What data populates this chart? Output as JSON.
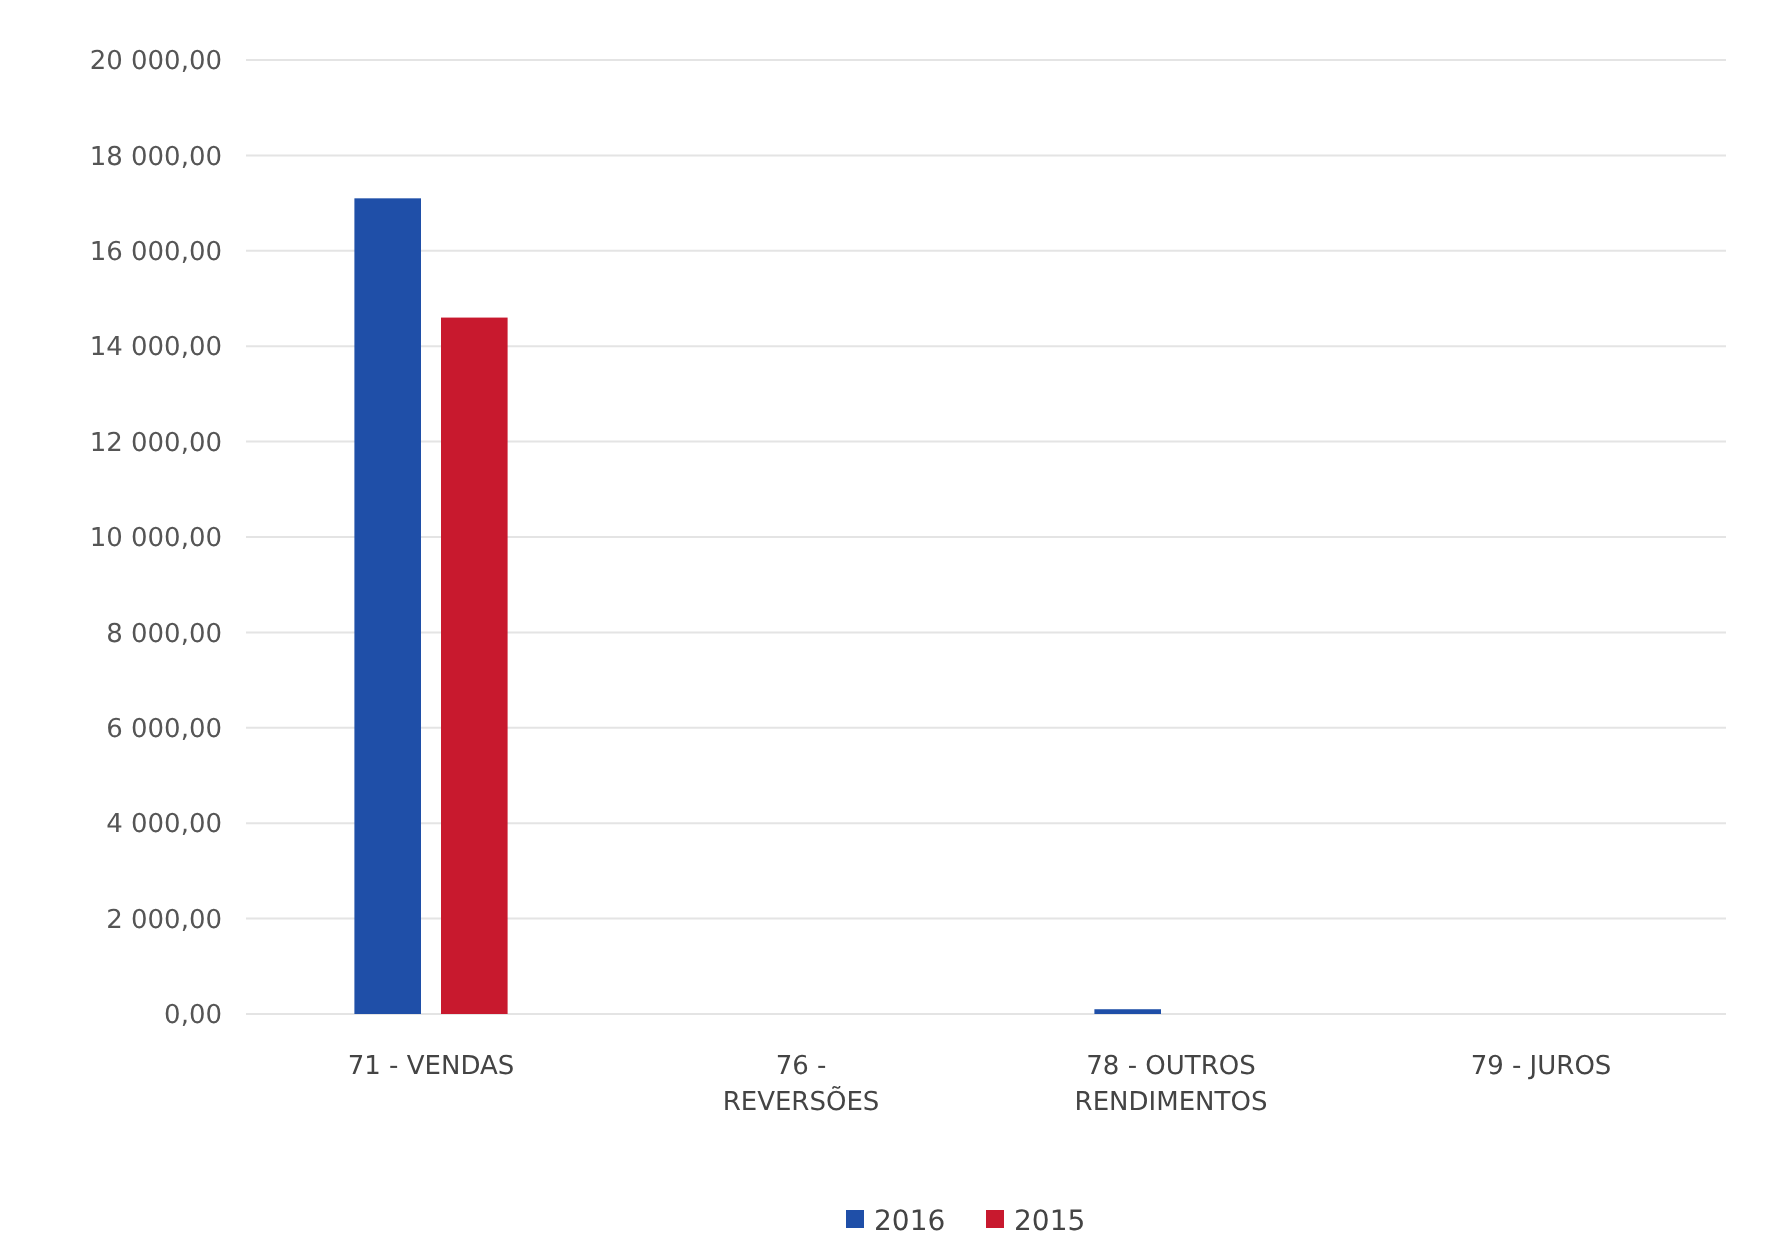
{
  "chart_data": {
    "type": "bar",
    "categories": [
      "71 - VENDAS",
      "76 - REVERSÕES",
      "78 - OUTROS RENDIMENTOS",
      "79 - JUROS"
    ],
    "series": [
      {
        "name": "2016",
        "color": "#1f4fa8",
        "values": [
          17100,
          0,
          100,
          0
        ]
      },
      {
        "name": "2015",
        "color": "#c8192e",
        "values": [
          14600,
          0,
          0,
          0
        ]
      }
    ],
    "ylim": [
      0,
      20000
    ],
    "yticks": [
      {
        "value": 0,
        "label": "0,00"
      },
      {
        "value": 2000,
        "label": "2 000,00"
      },
      {
        "value": 4000,
        "label": "4 000,00"
      },
      {
        "value": 6000,
        "label": "6 000,00"
      },
      {
        "value": 8000,
        "label": "8 000,00"
      },
      {
        "value": 10000,
        "label": "10 000,00"
      },
      {
        "value": 12000,
        "label": "12 000,00"
      },
      {
        "value": 14000,
        "label": "14 000,00"
      },
      {
        "value": 16000,
        "label": "16 000,00"
      },
      {
        "value": 18000,
        "label": "18 000,00"
      },
      {
        "value": 20000,
        "label": "20 000,00"
      }
    ],
    "grid": "y",
    "legend": "bottom"
  }
}
